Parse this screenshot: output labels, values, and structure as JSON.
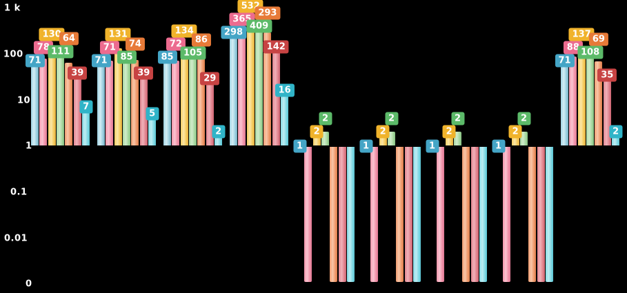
{
  "chart_data": {
    "type": "bar",
    "scale": "log-y",
    "title": "",
    "xlabel": "",
    "ylabel": "",
    "ylim": [
      0,
      1000
    ],
    "grid": false,
    "legend": false,
    "background_color": "#000000",
    "group_count": 9,
    "y_ticks": [
      {
        "label": "1 k",
        "value": 1000,
        "x": 6,
        "y": 12
      },
      {
        "label": "100",
        "value": 100,
        "x": 5,
        "y": 79
      },
      {
        "label": "10",
        "value": 10,
        "x": 25,
        "y": 146
      },
      {
        "label": "1",
        "value": 1,
        "x": 37,
        "y": 212
      },
      {
        "label": "0.1",
        "value": 0.1,
        "x": 15,
        "y": 279
      },
      {
        "label": "0.01",
        "value": 0.01,
        "x": 6,
        "y": 346
      },
      {
        "label": "0",
        "value": 0,
        "x": 37,
        "y": 412
      }
    ],
    "series": [
      {
        "name": "blue",
        "label_bg": "#44A5C6",
        "bar": "#9FD2E2",
        "bar_light": "#D3EDF5",
        "bar_dark": "#74AEC2",
        "values": [
          71,
          71,
          85,
          298,
          1,
          1,
          1,
          1,
          71
        ]
      },
      {
        "name": "pink",
        "label_bg": "#EC6B8F",
        "bar": "#F295AB",
        "bar_light": "#FAC4D1",
        "bar_dark": "#DE7893",
        "values": [
          78,
          71,
          72,
          365,
          0,
          0,
          0,
          0,
          88
        ]
      },
      {
        "name": "yellow",
        "label_bg": "#F0B32B",
        "bar": "#F6CD61",
        "bar_light": "#FBE6A6",
        "bar_dark": "#E3AC39",
        "values": [
          130,
          131,
          134,
          532,
          2,
          2,
          2,
          2,
          137
        ]
      },
      {
        "name": "green",
        "label_bg": "#5CBA69",
        "bar": "#A9D9A2",
        "bar_light": "#D0ECCA",
        "bar_dark": "#85BF7F",
        "values": [
          111,
          85,
          105,
          409,
          2,
          2,
          2,
          2,
          108
        ]
      },
      {
        "name": "orange",
        "label_bg": "#E77A38",
        "bar": "#F09C6F",
        "bar_light": "#F8C6A8",
        "bar_dark": "#DC7C49",
        "values": [
          64,
          74,
          86,
          293,
          0,
          0,
          0,
          0,
          69
        ]
      },
      {
        "name": "red",
        "label_bg": "#C74343",
        "bar": "#E28590",
        "bar_light": "#F0B1B9",
        "bar_dark": "#CC6370",
        "values": [
          39,
          39,
          29,
          142,
          0,
          0,
          0,
          0,
          35
        ]
      },
      {
        "name": "cyan",
        "label_bg": "#30B4C8",
        "bar": "#85DAE4",
        "bar_light": "#BEEDF3",
        "bar_dark": "#59C4D4",
        "values": [
          7,
          5,
          2,
          16,
          0,
          0,
          0,
          0,
          2
        ]
      }
    ]
  }
}
